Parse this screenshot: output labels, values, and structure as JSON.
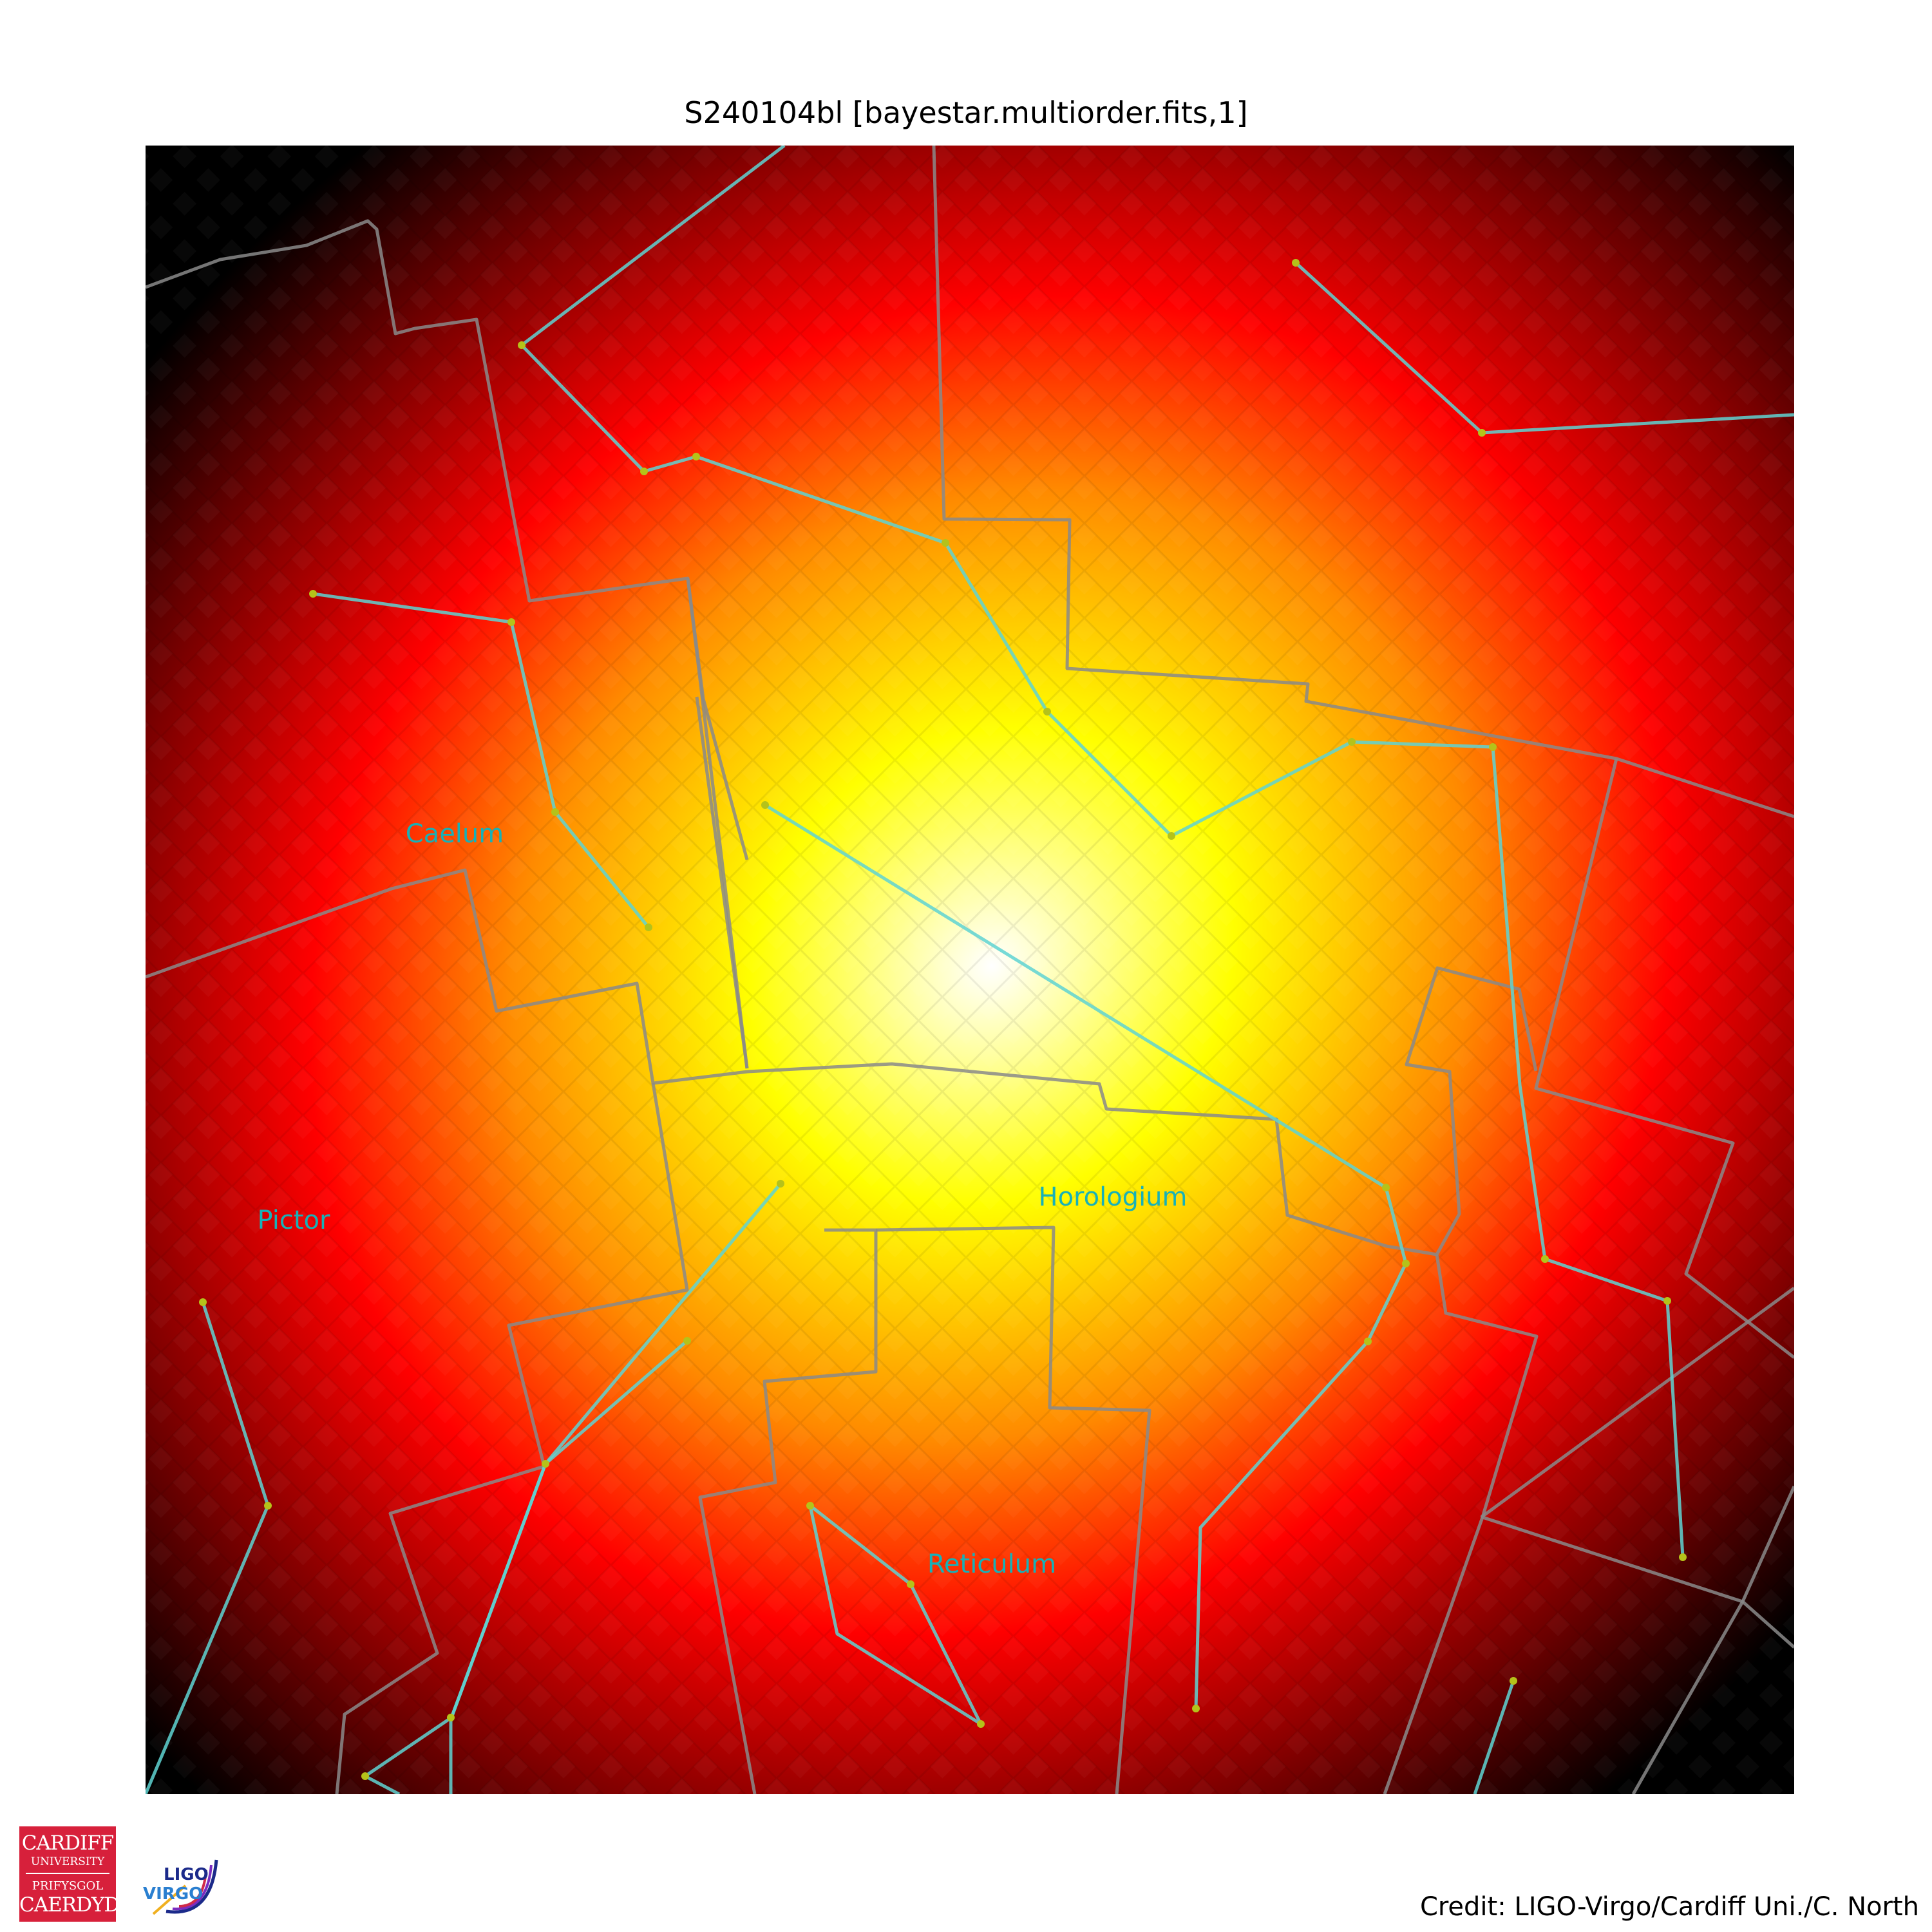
{
  "title": "S240104bl [bayestar.multiorder.fits,1]",
  "credit": "Credit: LIGO-Virgo/Cardiff Uni./C. North",
  "logos": {
    "cardiff": [
      "CARDIFF",
      "UNIVERSITY",
      "PRIFYSGOL",
      "CAERDYD"
    ],
    "ligo": "LIGO",
    "virgo": "VIRGO"
  },
  "constellation_labels": [
    "Caelum",
    "Pictor",
    "Horologium",
    "Reticulum"
  ],
  "colormap": [
    "#000000",
    "#7a0000",
    "#ff0000",
    "#ff8a00",
    "#ffff00",
    "#ffffff"
  ],
  "colors": {
    "boundary_line": "#8a8a8a",
    "figure_line": "#5fd4d2",
    "label": "#17b1b8",
    "star": "#b5c21a"
  }
}
